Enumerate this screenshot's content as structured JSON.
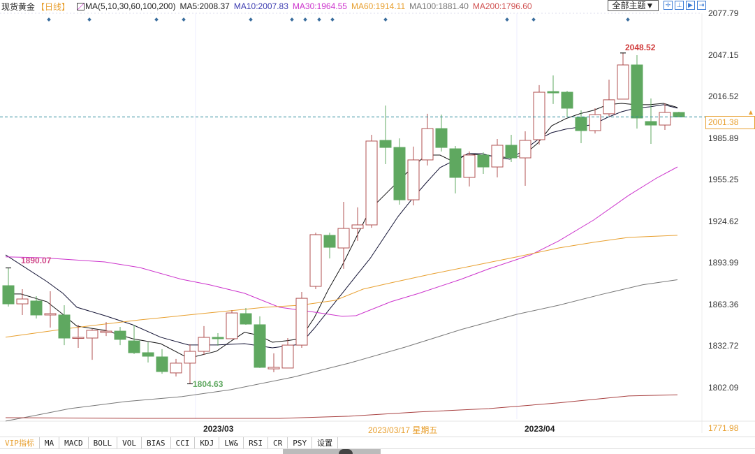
{
  "header": {
    "title": "现货黄金",
    "period": "【日线】",
    "ma_params": "MA(5,10,30,60,100,200)",
    "ma_values": [
      {
        "label": "MA5:2008.37",
        "color": "#222222"
      },
      {
        "label": "MA10:2007.83",
        "color": "#3b3bb0"
      },
      {
        "label": "MA30:1964.55",
        "color": "#cc33cc"
      },
      {
        "label": "MA60:1914.11",
        "color": "#e8a030"
      },
      {
        "label": "MA100:1881.40",
        "color": "#777777"
      },
      {
        "label": "MA200:1796.60",
        "color": "#d05050"
      }
    ],
    "theme_button": "全部主题▼",
    "tool_icons": [
      "crosshair-icon",
      "zoom-in-icon",
      "zoom-out-icon",
      "move-right-icon"
    ]
  },
  "chart_data": {
    "type": "candlestick",
    "title": "现货黄金 日线",
    "ylim": [
      1771.98,
      2077.79
    ],
    "y_ticks": [
      2077.79,
      2047.15,
      2016.52,
      1985.89,
      1955.25,
      1924.62,
      1893.99,
      1863.36,
      1832.72,
      1802.09
    ],
    "x_labels": [
      {
        "index": 16,
        "label": "2023/03"
      },
      {
        "index": 39,
        "label": "2023/04"
      }
    ],
    "crosshair": {
      "date": "2023/03/17 星期五",
      "price": "1771.98"
    },
    "current_price": "2001.38",
    "current_price_value": 2001.38,
    "annotations": [
      {
        "label": "1890.07",
        "index": 1,
        "value": 1890.07,
        "color": "#d04a8a"
      },
      {
        "label": "1804.63",
        "index": 14,
        "value": 1804.63,
        "color": "#5fa860"
      },
      {
        "label": "2048.52",
        "index": 45,
        "value": 2048.52,
        "color": "#d03a3a"
      }
    ],
    "candles": [
      [
        1877.0,
        1890.07,
        1861.6,
        1863.6
      ],
      [
        1863.6,
        1874.4,
        1855.4,
        1867.2
      ],
      [
        1865.7,
        1869.3,
        1852.8,
        1855.4
      ],
      [
        1855.4,
        1872.9,
        1846.1,
        1856.4
      ],
      [
        1855.4,
        1862.6,
        1833.2,
        1838.4
      ],
      [
        1838.4,
        1848.2,
        1831.2,
        1838.9
      ],
      [
        1838.4,
        1845.1,
        1822.4,
        1844.1
      ],
      [
        1842.5,
        1850.2,
        1839.9,
        1843.5
      ],
      [
        1843.5,
        1846.6,
        1833.2,
        1837.4
      ],
      [
        1836.3,
        1848.2,
        1826.6,
        1827.6
      ],
      [
        1827.6,
        1835.3,
        1820.4,
        1825.0
      ],
      [
        1824.5,
        1830.2,
        1812.1,
        1813.7
      ],
      [
        1812.7,
        1823.0,
        1810.1,
        1819.9
      ],
      [
        1819.9,
        1833.8,
        1804.63,
        1828.6
      ],
      [
        1828.6,
        1847.2,
        1826.0,
        1838.9
      ],
      [
        1838.9,
        1842.0,
        1832.7,
        1837.9
      ],
      [
        1837.9,
        1859.0,
        1837.9,
        1856.9
      ],
      [
        1856.4,
        1860.5,
        1848.2,
        1848.7
      ],
      [
        1848.2,
        1854.4,
        1816.3,
        1816.8
      ],
      [
        1815.7,
        1827.1,
        1813.2,
        1816.8
      ],
      [
        1816.3,
        1838.4,
        1816.3,
        1833.2
      ],
      [
        1833.2,
        1872.4,
        1831.2,
        1867.7
      ],
      [
        1876.5,
        1916.1,
        1874.4,
        1914.6
      ],
      [
        1914.1,
        1916.1,
        1897.1,
        1905.3
      ],
      [
        1904.8,
        1938.8,
        1889.4,
        1919.2
      ],
      [
        1919.2,
        1934.7,
        1910.0,
        1921.8
      ],
      [
        1921.8,
        1988.2,
        1919.7,
        1983.6
      ],
      [
        1984.1,
        2009.8,
        1966.6,
        1978.9
      ],
      [
        1978.9,
        1985.6,
        1936.7,
        1940.3
      ],
      [
        1940.3,
        1979.5,
        1936.2,
        1969.7
      ],
      [
        1969.7,
        2003.7,
        1965.6,
        1992.8
      ],
      [
        1992.8,
        2003.1,
        1975.9,
        1978.9
      ],
      [
        1977.9,
        1980.0,
        1945.0,
        1956.8
      ],
      [
        1956.8,
        1975.9,
        1950.1,
        1973.3
      ],
      [
        1973.3,
        1975.3,
        1959.4,
        1964.5
      ],
      [
        1964.5,
        1985.1,
        1956.8,
        1980.5
      ],
      [
        1980.5,
        1988.2,
        1968.1,
        1971.2
      ],
      [
        1971.2,
        1990.8,
        1950.6,
        1984.1
      ],
      [
        1984.6,
        2024.8,
        1981.0,
        2019.6
      ],
      [
        2020.1,
        2032.0,
        2010.9,
        2019.1
      ],
      [
        2019.6,
        2020.6,
        2001.1,
        2007.8
      ],
      [
        2001.1,
        2006.2,
        1982.0,
        1991.3
      ],
      [
        1991.3,
        2007.8,
        1989.2,
        2003.1
      ],
      [
        2003.7,
        2028.9,
        2002.1,
        2014.0
      ],
      [
        2014.5,
        2048.52,
        2014.5,
        2039.7
      ],
      [
        2039.7,
        2046.9,
        1992.8,
        2000.6
      ],
      [
        1998.0,
        2015.0,
        1981.5,
        1995.4
      ],
      [
        1995.4,
        2011.4,
        1991.8,
        2004.7
      ],
      [
        2004.7,
        2005.2,
        2001.38,
        2001.38
      ]
    ],
    "candle_format": [
      "open",
      "high",
      "low",
      "close"
    ],
    "series": [
      {
        "name": "MA5",
        "color": "#111111",
        "points": [
          [
            0.9,
            1870.9
          ],
          [
            1.9,
            1870.9
          ],
          [
            3.75,
            1865.2
          ],
          [
            4.9,
            1855.9
          ],
          [
            5.9,
            1847.2
          ],
          [
            7.9,
            1844.1
          ],
          [
            9.9,
            1837.9
          ],
          [
            11.9,
            1834.3
          ],
          [
            13.9,
            1823.5
          ],
          [
            15.9,
            1828.7
          ],
          [
            17.05,
            1836.9
          ],
          [
            17.9,
            1842.6
          ],
          [
            18.9,
            1840.5
          ],
          [
            19.9,
            1835.3
          ],
          [
            20.9,
            1836.4
          ],
          [
            21.9,
            1837.9
          ],
          [
            22.9,
            1853.4
          ],
          [
            23.9,
            1874.0
          ],
          [
            24.9,
            1892.0
          ],
          [
            25.9,
            1912.6
          ],
          [
            26.9,
            1933.2
          ],
          [
            27.9,
            1943.5
          ],
          [
            28.9,
            1953.8
          ],
          [
            29.9,
            1964.0
          ],
          [
            30.9,
            1973.3
          ],
          [
            31.9,
            1973.3
          ],
          [
            32.9,
            1968.2
          ],
          [
            33.9,
            1974.3
          ],
          [
            34.9,
            1973.3
          ],
          [
            35.9,
            1972.3
          ],
          [
            36.9,
            1971.2
          ],
          [
            37.9,
            1973.3
          ],
          [
            38.9,
            1982.1
          ],
          [
            39.9,
            1994.9
          ],
          [
            40.9,
            2000.1
          ],
          [
            41.9,
            2003.7
          ],
          [
            42.9,
            2006.3
          ],
          [
            43.9,
            2010.4
          ],
          [
            44.9,
            2011.4
          ],
          [
            45.9,
            2010.4
          ],
          [
            46.9,
            2010.4
          ],
          [
            47.9,
            2011.4
          ],
          [
            48.9,
            2008.37
          ]
        ]
      },
      {
        "name": "MA10",
        "color": "#111133",
        "points": [
          [
            0.8,
            1899.7
          ],
          [
            3.75,
            1880.1
          ],
          [
            4.9,
            1871.4
          ],
          [
            5.9,
            1861.1
          ],
          [
            7.9,
            1854.9
          ],
          [
            9.9,
            1848.2
          ],
          [
            11.9,
            1839.0
          ],
          [
            13.9,
            1833.3
          ],
          [
            15.9,
            1833.3
          ],
          [
            17.9,
            1834.3
          ],
          [
            19.9,
            1831.2
          ],
          [
            21.9,
            1833.8
          ],
          [
            22.9,
            1845.6
          ],
          [
            23.9,
            1858.5
          ],
          [
            24.9,
            1871.4
          ],
          [
            25.9,
            1884.3
          ],
          [
            26.9,
            1897.1
          ],
          [
            27.9,
            1912.6
          ],
          [
            28.9,
            1928.0
          ],
          [
            29.9,
            1940.9
          ],
          [
            30.9,
            1952.7
          ],
          [
            31.9,
            1964.0
          ],
          [
            32.9,
            1969.2
          ],
          [
            33.9,
            1974.3
          ],
          [
            34.9,
            1974.3
          ],
          [
            35.9,
            1971.8
          ],
          [
            36.9,
            1970.2
          ],
          [
            37.9,
            1976.9
          ],
          [
            38.9,
            1984.6
          ],
          [
            39.9,
            1989.8
          ],
          [
            40.9,
            1992.4
          ],
          [
            41.9,
            1993.9
          ],
          [
            42.9,
            1996.0
          ],
          [
            43.9,
            2001.1
          ],
          [
            44.9,
            2005.2
          ],
          [
            45.9,
            2007.8
          ],
          [
            46.9,
            2008.8
          ],
          [
            47.9,
            2010.4
          ],
          [
            48.9,
            2007.83
          ]
        ]
      },
      {
        "name": "MA30",
        "color": "#cc33cc",
        "points": [
          [
            0.8,
            1898.2
          ],
          [
            3.4,
            1897.6
          ],
          [
            7.9,
            1894.5
          ],
          [
            10.4,
            1890.4
          ],
          [
            13.4,
            1881.7
          ],
          [
            15.4,
            1877.6
          ],
          [
            17.9,
            1871.4
          ],
          [
            20.4,
            1861.1
          ],
          [
            22.9,
            1857.5
          ],
          [
            24.9,
            1854.4
          ],
          [
            25.9,
            1854.9
          ],
          [
            28.4,
            1865.2
          ],
          [
            30.4,
            1871.4
          ],
          [
            33.4,
            1881.7
          ],
          [
            35.4,
            1889.4
          ],
          [
            38.4,
            1899.7
          ],
          [
            40.4,
            1910.0
          ],
          [
            42.9,
            1925.4
          ],
          [
            45.4,
            1943.5
          ],
          [
            47.4,
            1956.3
          ],
          [
            48.9,
            1964.55
          ]
        ]
      },
      {
        "name": "MA60",
        "color": "#e8a030",
        "points": [
          [
            0.8,
            1839.0
          ],
          [
            5.4,
            1845.6
          ],
          [
            10.4,
            1851.8
          ],
          [
            15.4,
            1857.0
          ],
          [
            19.4,
            1861.1
          ],
          [
            21.9,
            1862.6
          ],
          [
            24.4,
            1866.2
          ],
          [
            26.4,
            1874.5
          ],
          [
            28.4,
            1879.1
          ],
          [
            31.4,
            1885.8
          ],
          [
            34.4,
            1892.0
          ],
          [
            37.4,
            1898.2
          ],
          [
            40.4,
            1904.8
          ],
          [
            42.9,
            1909.0
          ],
          [
            45.4,
            1912.6
          ],
          [
            48.9,
            1914.11
          ]
        ]
      },
      {
        "name": "MA100",
        "color": "#777777",
        "points": [
          [
            0.8,
            1777.2
          ],
          [
            2.9,
            1781.3
          ],
          [
            5.4,
            1786.4
          ],
          [
            9.4,
            1791.6
          ],
          [
            13.4,
            1795.2
          ],
          [
            16.9,
            1800.3
          ],
          [
            21.4,
            1809.6
          ],
          [
            25.4,
            1819.9
          ],
          [
            29.4,
            1831.7
          ],
          [
            33.4,
            1844.6
          ],
          [
            37.4,
            1855.9
          ],
          [
            40.4,
            1862.6
          ],
          [
            43.4,
            1870.4
          ],
          [
            46.4,
            1877.6
          ],
          [
            48.9,
            1881.4
          ]
        ]
      },
      {
        "name": "MA200",
        "color": "#a84040",
        "points": [
          [
            0.8,
            1779.7
          ],
          [
            10.4,
            1779.2
          ],
          [
            20.4,
            1779.2
          ],
          [
            25.4,
            1780.8
          ],
          [
            30.4,
            1783.9
          ],
          [
            35.4,
            1786.4
          ],
          [
            40.4,
            1790.6
          ],
          [
            45.4,
            1795.7
          ],
          [
            48.9,
            1796.6
          ]
        ]
      }
    ]
  },
  "tabs": [
    "VIP指标",
    "MA",
    "MACD",
    "BOLL",
    "VOL",
    "BIAS",
    "CCI",
    "KDJ",
    "LW&",
    "RSI",
    "CR",
    "PSY",
    "设置"
  ],
  "active_tab": 0
}
